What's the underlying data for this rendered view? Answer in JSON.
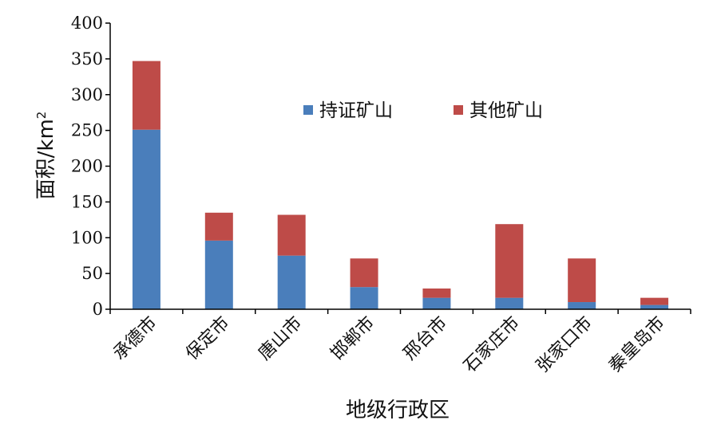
{
  "chart_data": {
    "type": "bar",
    "stacked": true,
    "categories": [
      "承德市",
      "保定市",
      "唐山市",
      "邯郸市",
      "邢台市",
      "石家庄市",
      "张家口市",
      "秦皇岛市"
    ],
    "series": [
      {
        "name": "持证矿山",
        "color": "#4a7ebb",
        "values": [
          251,
          96,
          75,
          31,
          16,
          16,
          10,
          6
        ]
      },
      {
        "name": "其他矿山",
        "color": "#be4b48",
        "values": [
          96,
          39,
          57,
          40,
          13,
          103,
          61,
          10
        ]
      }
    ],
    "xlabel": "地级行政区",
    "ylabel_main": "面积/km",
    "ylabel_sup": "2",
    "ylim": [
      0,
      400
    ],
    "yticks": [
      "0",
      "50",
      "100",
      "150",
      "200",
      "250",
      "300",
      "350",
      "400"
    ],
    "grid": false,
    "legend_position": "top-right, horizontal"
  }
}
